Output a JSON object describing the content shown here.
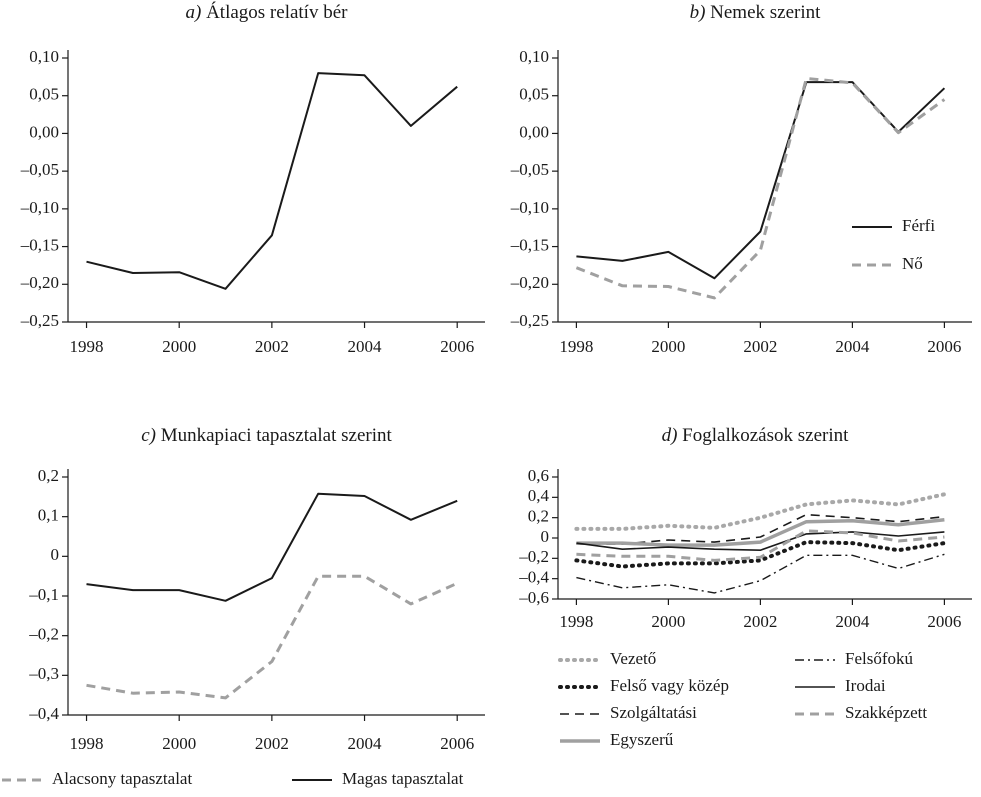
{
  "chart_data": [
    {
      "type": "line",
      "label": "a)",
      "title": "Átlagos relatív bér",
      "x": [
        1998,
        1999,
        2000,
        2001,
        2002,
        2003,
        2004,
        2005,
        2006
      ],
      "values": [
        -0.17,
        -0.185,
        -0.184,
        -0.206,
        -0.135,
        0.08,
        0.077,
        0.01,
        0.062
      ],
      "color": "#1a1a1a",
      "style": "solid",
      "width": 2,
      "xlim": [
        1997.6,
        2006.6
      ],
      "xticks": [
        1998,
        2000,
        2002,
        2004,
        2006
      ],
      "ylim": [
        -0.25,
        0.1
      ],
      "yticks": [
        {
          "value": 0.1,
          "label": "0,10"
        },
        {
          "value": 0.05,
          "label": "0,05"
        },
        {
          "value": 0,
          "label": "0,00"
        },
        {
          "value": -0.05,
          "label": "–0,05"
        },
        {
          "value": -0.1,
          "label": "–0,10"
        },
        {
          "value": -0.15,
          "label": "–0,15"
        },
        {
          "value": -0.2,
          "label": "–0,20"
        },
        {
          "value": -0.25,
          "label": "–0,25"
        }
      ]
    },
    {
      "type": "line",
      "label": "b)",
      "title": "Nemek szerint",
      "x": [
        1998,
        1999,
        2000,
        2001,
        2002,
        2003,
        2004,
        2005,
        2006
      ],
      "series": [
        {
          "name": "Férfi",
          "color": "#1a1a1a",
          "style": "solid",
          "width": 2,
          "values": [
            -0.163,
            -0.169,
            -0.157,
            -0.192,
            -0.13,
            0.068,
            0.068,
            0.002,
            0.06
          ]
        },
        {
          "name": "Nő",
          "color": "#a0a0a0",
          "style": "dashed",
          "width": 3,
          "values": [
            -0.178,
            -0.202,
            -0.203,
            -0.218,
            -0.155,
            0.073,
            0.067,
            0.001,
            0.045
          ]
        }
      ],
      "legend": "lower right",
      "xlim": [
        1997.6,
        2006.6
      ],
      "xticks": [
        1998,
        2000,
        2002,
        2004,
        2006
      ],
      "ylim": [
        -0.25,
        0.1
      ],
      "yticks": [
        {
          "value": 0.1,
          "label": "0,10"
        },
        {
          "value": 0.05,
          "label": "0,05"
        },
        {
          "value": 0,
          "label": "0,00"
        },
        {
          "value": -0.05,
          "label": "–0,05"
        },
        {
          "value": -0.1,
          "label": "–0,10"
        },
        {
          "value": -0.15,
          "label": "–0,15"
        },
        {
          "value": -0.2,
          "label": "–0,20"
        },
        {
          "value": -0.25,
          "label": "–0,25"
        }
      ]
    },
    {
      "type": "line",
      "label": "c)",
      "title": "Munkapiaci tapasztalat szerint",
      "x": [
        1998,
        1999,
        2000,
        2001,
        2002,
        2003,
        2004,
        2005,
        2006
      ],
      "series": [
        {
          "name": "Alacsony tapasztalat",
          "color": "#a0a0a0",
          "style": "dashed",
          "width": 3,
          "values": [
            -0.325,
            -0.345,
            -0.342,
            -0.357,
            -0.265,
            -0.05,
            -0.05,
            -0.12,
            -0.068
          ]
        },
        {
          "name": "Magas tapasztalat",
          "color": "#1a1a1a",
          "style": "solid",
          "width": 2,
          "values": [
            -0.07,
            -0.085,
            -0.085,
            -0.112,
            -0.055,
            0.158,
            0.152,
            0.092,
            0.14
          ]
        }
      ],
      "legend": "below",
      "xlim": [
        1997.6,
        2006.6
      ],
      "xticks": [
        1998,
        2000,
        2002,
        2004,
        2006
      ],
      "ylim": [
        -0.4,
        0.2
      ],
      "yticks": [
        {
          "value": 0.2,
          "label": "0,2"
        },
        {
          "value": 0.1,
          "label": "0,1"
        },
        0,
        {
          "value": -0.1,
          "label": "–0,1"
        },
        {
          "value": -0.2,
          "label": "–0,2"
        },
        {
          "value": -0.3,
          "label": "–0,3"
        },
        {
          "value": -0.4,
          "label": "–0,4"
        }
      ]
    },
    {
      "type": "line",
      "label": "d)",
      "title": "Foglalkozások szerint",
      "x": [
        1998,
        1999,
        2000,
        2001,
        2002,
        2003,
        2004,
        2005,
        2006
      ],
      "series": [
        {
          "name": "Vezető",
          "color": "#a8a8a8",
          "style": "dotted",
          "width": 4,
          "values": [
            0.09,
            0.09,
            0.12,
            0.1,
            0.2,
            0.33,
            0.37,
            0.33,
            0.43
          ]
        },
        {
          "name": "Felső vagy közép",
          "color": "#1a1a1a",
          "style": "dotted",
          "width": 4,
          "values": [
            -0.22,
            -0.28,
            -0.25,
            -0.25,
            -0.22,
            -0.04,
            -0.05,
            -0.12,
            -0.05
          ]
        },
        {
          "name": "Szolgáltatási",
          "color": "#1a1a1a",
          "style": "dashed",
          "width": 1.6,
          "values": [
            -0.06,
            -0.06,
            -0.02,
            -0.04,
            0.01,
            0.23,
            0.2,
            0.16,
            0.21
          ]
        },
        {
          "name": "Egyszerű",
          "color": "#a0a0a0",
          "style": "solid",
          "width": 3.5,
          "values": [
            -0.05,
            -0.05,
            -0.07,
            -0.07,
            -0.04,
            0.16,
            0.17,
            0.13,
            0.18
          ]
        },
        {
          "name": "Felsőfokú",
          "color": "#1a1a1a",
          "style": "dashdot",
          "width": 1.4,
          "values": [
            -0.39,
            -0.49,
            -0.46,
            -0.54,
            -0.42,
            -0.17,
            -0.17,
            -0.3,
            -0.16
          ]
        },
        {
          "name": "Irodai",
          "color": "#1a1a1a",
          "style": "solid",
          "width": 1.6,
          "values": [
            -0.05,
            -0.11,
            -0.09,
            -0.11,
            -0.12,
            0.04,
            0.06,
            0.02,
            0.06
          ]
        },
        {
          "name": "Szakképzett",
          "color": "#a0a0a0",
          "style": "dashed",
          "width": 3,
          "values": [
            -0.16,
            -0.18,
            -0.18,
            -0.22,
            -0.19,
            0.07,
            0.05,
            -0.03,
            0.01
          ]
        }
      ],
      "legend": "below",
      "xlim": [
        1997.6,
        2006.6
      ],
      "xticks": [
        1998,
        2000,
        2002,
        2004,
        2006
      ],
      "ylim": [
        -0.6,
        0.6
      ],
      "yticks": [
        {
          "value": 0.6,
          "label": "0,6"
        },
        {
          "value": 0.4,
          "label": "0,4"
        },
        {
          "value": 0.2,
          "label": "0,2"
        },
        0,
        {
          "value": -0.2,
          "label": "–0,2"
        },
        {
          "value": -0.4,
          "label": "–0,4"
        },
        {
          "value": -0.6,
          "label": "–0,6"
        }
      ]
    }
  ]
}
